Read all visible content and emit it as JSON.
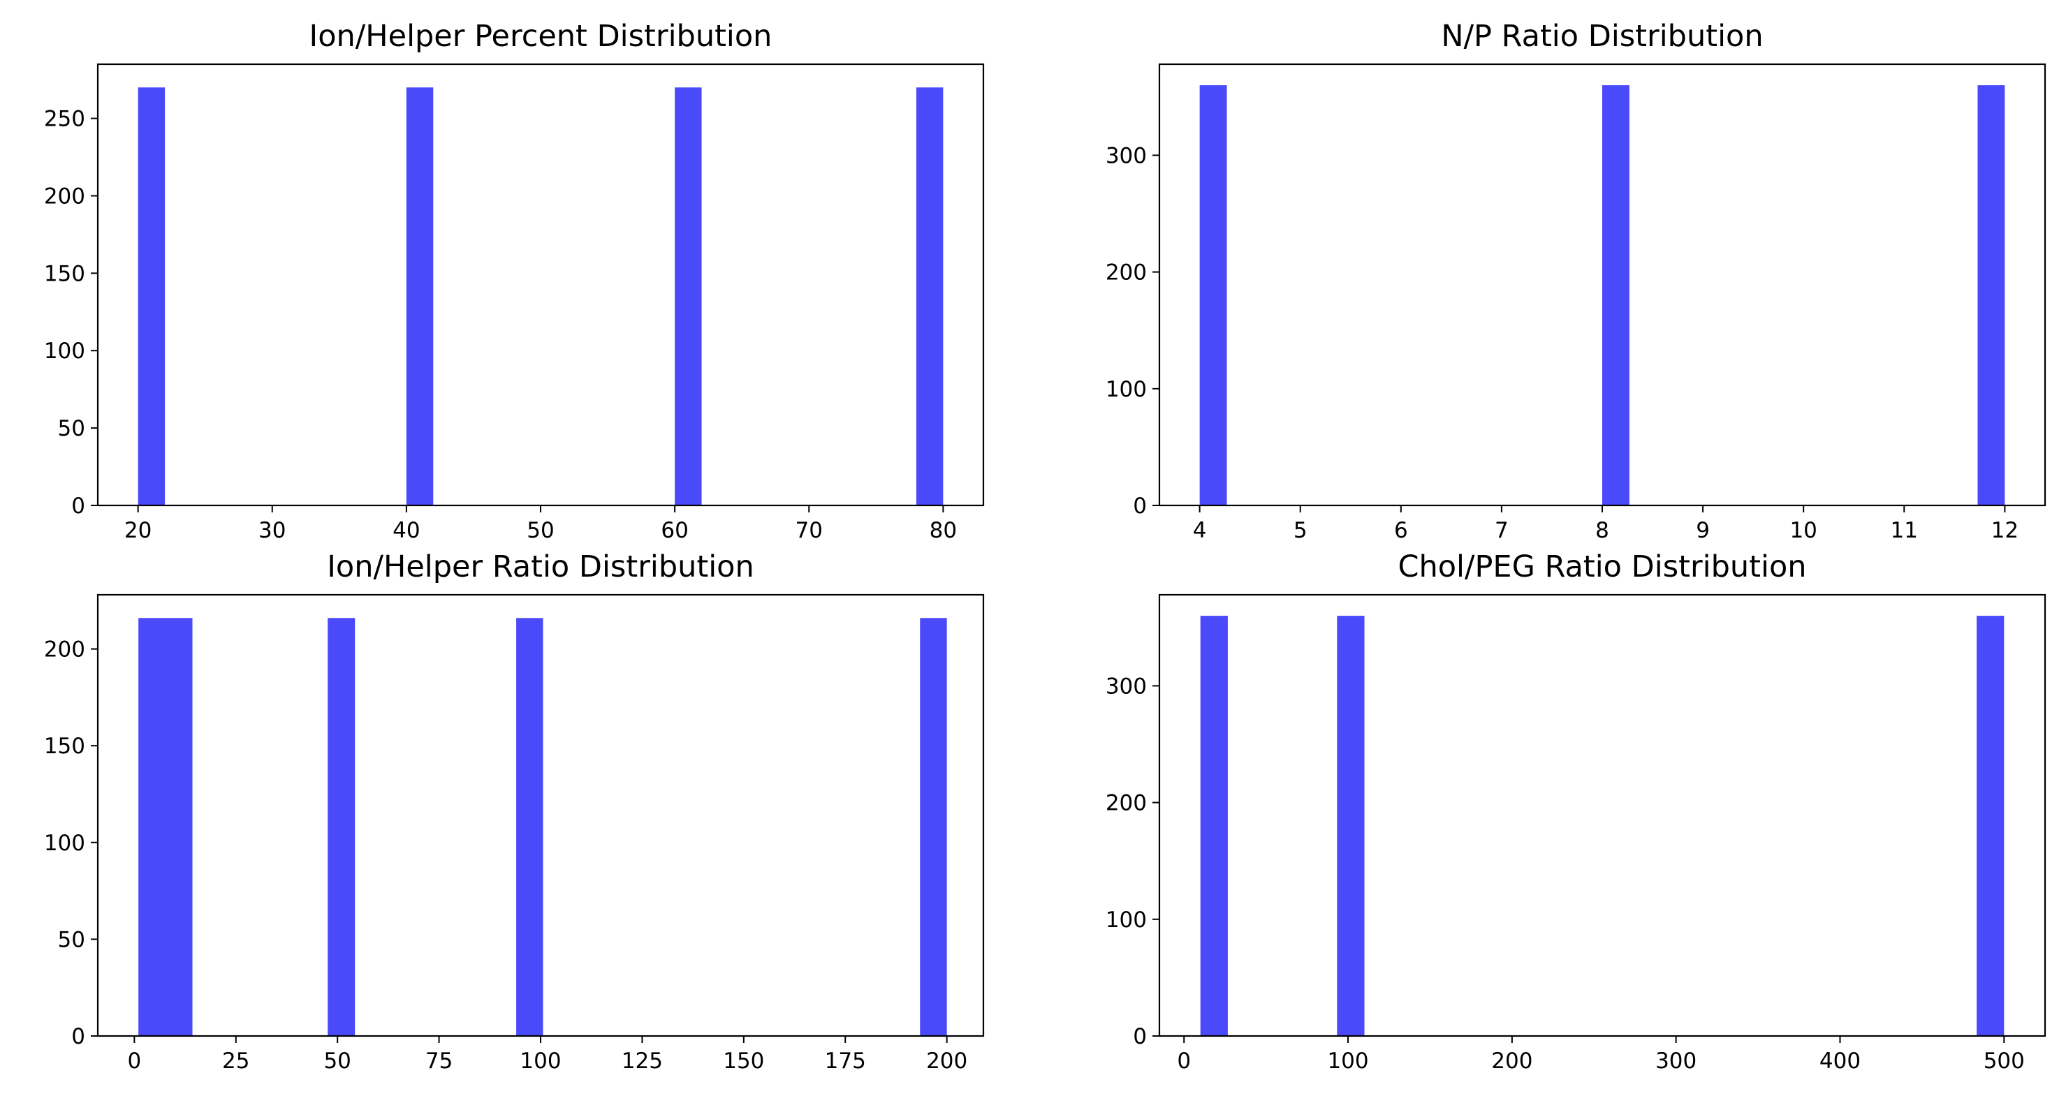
{
  "figure": {
    "bar_color": "#4a4afb",
    "axes_color": "#000000",
    "background": "#ffffff"
  },
  "chart_data": [
    {
      "type": "bar",
      "title": "Ion/Helper Percent Distribution",
      "xlabel": "",
      "ylabel": "",
      "xlim": [
        17,
        83
      ],
      "ylim": [
        0,
        285
      ],
      "xticks": [
        20,
        30,
        40,
        50,
        60,
        70,
        80
      ],
      "yticks": [
        0,
        50,
        100,
        150,
        200,
        250
      ],
      "bins": [
        {
          "start": 20,
          "end": 22,
          "count": 270
        },
        {
          "start": 40,
          "end": 42,
          "count": 270
        },
        {
          "start": 60,
          "end": 62,
          "count": 270
        },
        {
          "start": 78,
          "end": 80,
          "count": 270
        }
      ],
      "grid": false
    },
    {
      "type": "bar",
      "title": "N/P Ratio Distribution",
      "xlabel": "",
      "ylabel": "",
      "xlim": [
        3.6,
        12.4
      ],
      "ylim": [
        0,
        378
      ],
      "xticks": [
        4,
        5,
        6,
        7,
        8,
        9,
        10,
        11,
        12
      ],
      "yticks": [
        0,
        100,
        200,
        300
      ],
      "bins": [
        {
          "start": 4.0,
          "end": 4.27,
          "count": 360
        },
        {
          "start": 8.0,
          "end": 8.27,
          "count": 360
        },
        {
          "start": 11.73,
          "end": 12.0,
          "count": 360
        }
      ],
      "grid": false
    },
    {
      "type": "bar",
      "title": "Ion/Helper Ratio Distribution",
      "xlabel": "",
      "ylabel": "",
      "xlim": [
        -9,
        209
      ],
      "ylim": [
        0,
        228
      ],
      "xticks": [
        0,
        25,
        50,
        75,
        100,
        125,
        150,
        175,
        200
      ],
      "yticks": [
        0,
        50,
        100,
        150,
        200
      ],
      "bins": [
        {
          "start": 1,
          "end": 14.3,
          "count": 216
        },
        {
          "start": 47.6,
          "end": 54.3,
          "count": 216
        },
        {
          "start": 94,
          "end": 100.6,
          "count": 216
        },
        {
          "start": 193.4,
          "end": 200,
          "count": 216
        }
      ],
      "grid": false
    },
    {
      "type": "bar",
      "title": "Chol/PEG Ratio Distribution",
      "xlabel": "",
      "ylabel": "",
      "xlim": [
        -15,
        525
      ],
      "ylim": [
        0,
        378
      ],
      "xticks": [
        0,
        100,
        200,
        300,
        400,
        500
      ],
      "yticks": [
        0,
        100,
        200,
        300
      ],
      "bins": [
        {
          "start": 10,
          "end": 26.7,
          "count": 360
        },
        {
          "start": 93.3,
          "end": 110,
          "count": 360
        },
        {
          "start": 483.3,
          "end": 500,
          "count": 360
        }
      ],
      "grid": false
    }
  ]
}
